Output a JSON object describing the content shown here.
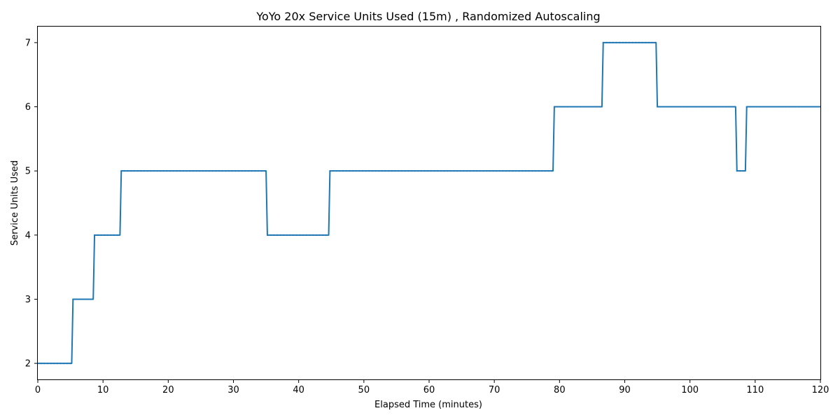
{
  "chart_data": {
    "type": "line",
    "title": "YoYo 20x Service Units Used (15m) , Randomized Autoscaling",
    "xlabel": "Elapsed Time (minutes)",
    "ylabel": "Service Units Used",
    "xlim": [
      0,
      120
    ],
    "ylim": [
      1.75,
      7.25
    ],
    "xticks": [
      0,
      10,
      20,
      30,
      40,
      50,
      60,
      70,
      80,
      90,
      100,
      110,
      120
    ],
    "yticks": [
      2,
      3,
      4,
      5,
      6,
      7
    ],
    "grid": false,
    "legend": "none",
    "color": "#1f77b4",
    "series": [
      {
        "x": [
          0,
          5.2,
          5.4,
          8.5,
          8.7,
          12.6,
          12.8,
          35,
          35.2,
          44.6,
          44.8,
          79,
          79.2,
          86.5,
          86.7,
          94.8,
          95,
          107,
          107.2,
          108.5,
          108.7,
          120
        ],
        "values": [
          2,
          2,
          3,
          3,
          4,
          4,
          5,
          5,
          4,
          4,
          5,
          5,
          6,
          6,
          7,
          7,
          6,
          6,
          5,
          5,
          6,
          6
        ]
      }
    ]
  }
}
